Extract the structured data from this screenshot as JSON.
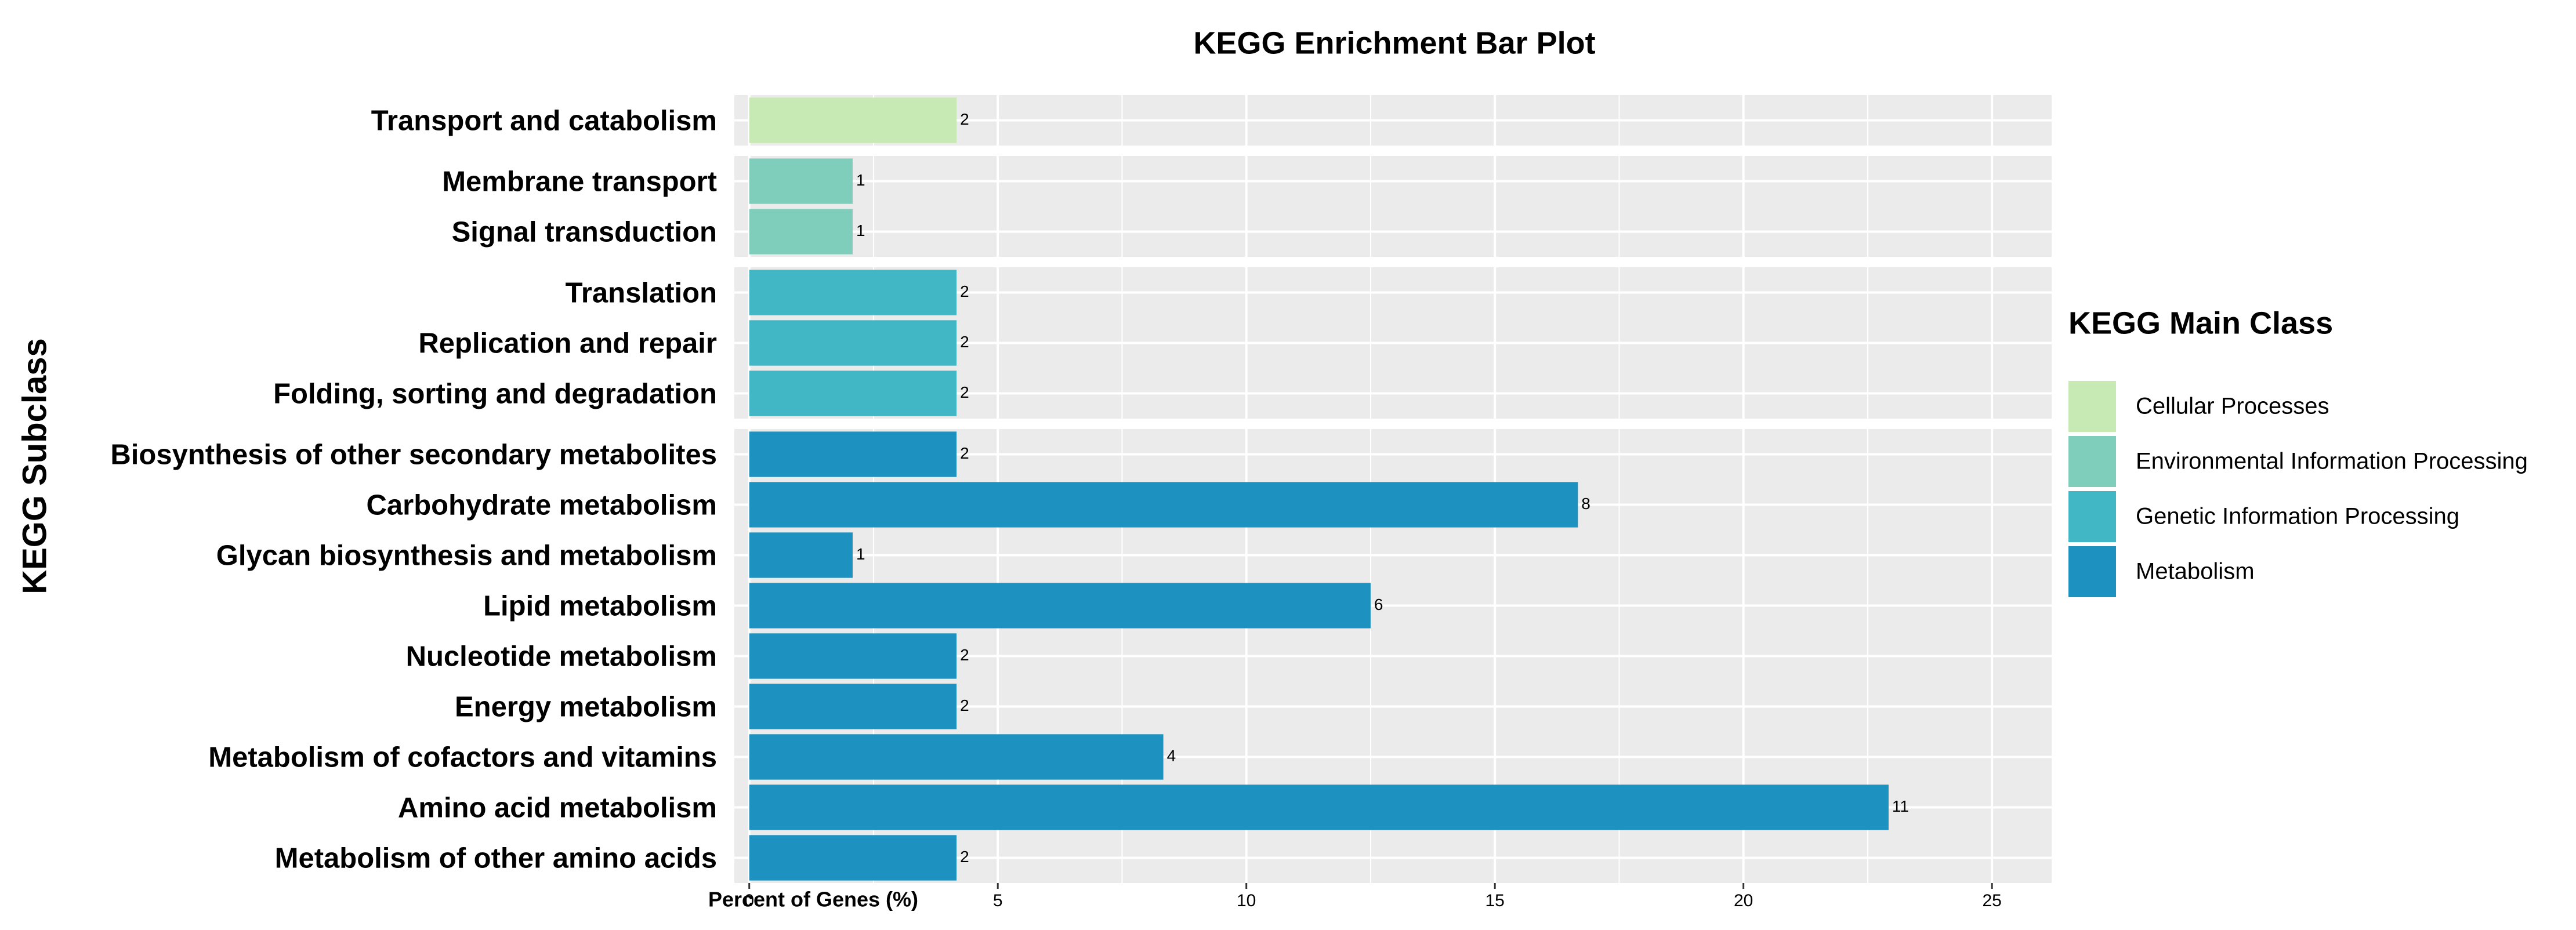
{
  "chart_data": {
    "type": "bar",
    "orientation": "horizontal",
    "title": "KEGG Enrichment Bar Plot",
    "x_label": "Percent of Genes (%)",
    "y_label": "KEGG Subclass",
    "legend_title": "KEGG Main Class",
    "xlim": [
      -0.3,
      26.2
    ],
    "xticks": [
      0,
      5,
      10,
      15,
      20,
      25
    ],
    "x_minor_ticks": [
      2.5,
      7.5,
      12.5,
      17.5,
      22.5
    ],
    "grid": true,
    "series": [
      {
        "name": "Cellular Processes",
        "color": "#c7e9b4",
        "categories": [
          "Transport and catabolism"
        ],
        "values": [
          4.17
        ],
        "counts": [
          2
        ]
      },
      {
        "name": "Environmental Information Processing",
        "color": "#7fcdbb",
        "categories": [
          "Membrane transport",
          "Signal transduction"
        ],
        "values": [
          2.08,
          2.08
        ],
        "counts": [
          1,
          1
        ]
      },
      {
        "name": "Genetic Information Processing",
        "color": "#41b6c4",
        "categories": [
          "Translation",
          "Replication and repair",
          "Folding, sorting and degradation"
        ],
        "values": [
          4.17,
          4.17,
          4.17
        ],
        "counts": [
          2,
          2,
          2
        ]
      },
      {
        "name": "Metabolism",
        "color": "#1d91c0",
        "categories": [
          "Biosynthesis of other secondary metabolites",
          "Carbohydrate metabolism",
          "Glycan biosynthesis and metabolism",
          "Lipid metabolism",
          "Nucleotide metabolism",
          "Energy metabolism",
          "Metabolism of cofactors and vitamins",
          "Amino acid metabolism",
          "Metabolism of other amino acids"
        ],
        "values": [
          4.17,
          16.67,
          2.08,
          12.5,
          4.17,
          4.17,
          8.33,
          22.92,
          4.17
        ],
        "counts": [
          2,
          8,
          1,
          6,
          2,
          2,
          4,
          11,
          2
        ]
      }
    ]
  }
}
